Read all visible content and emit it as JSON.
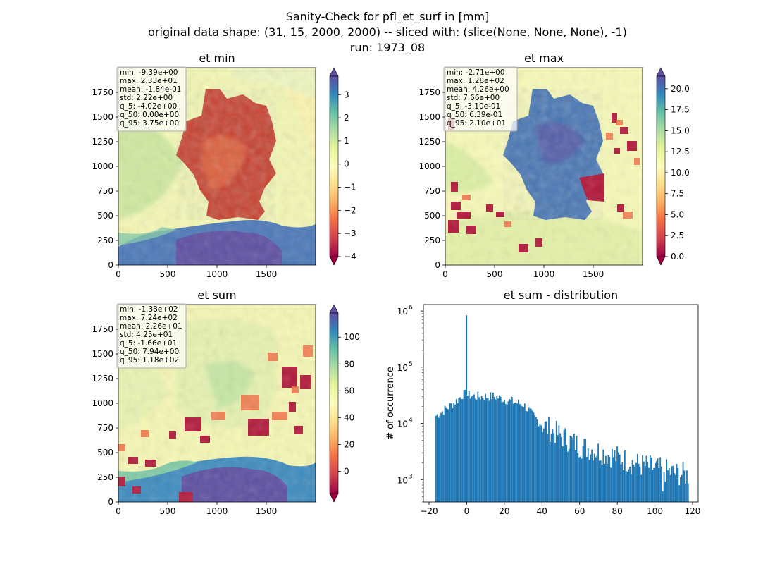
{
  "figure": {
    "title_lines": [
      "Sanity-Check for pfl_et_surf in [mm]",
      "original data shape: (31, 15, 2000, 2000) -- sliced with: (slice(None, None, None), -1)",
      "run: 1973_08"
    ]
  },
  "chart_data": [
    {
      "type": "heatmap",
      "title": "et min",
      "x_ticks": [
        0,
        500,
        1000,
        1500
      ],
      "y_ticks": [
        0,
        250,
        500,
        750,
        1000,
        1250,
        1500,
        1750
      ],
      "xlim": [
        0,
        2000
      ],
      "ylim": [
        0,
        2000
      ],
      "colormap": "Spectral",
      "colorbar": {
        "min": -4,
        "max": 3.8,
        "ticks": [
          -4,
          -3,
          -2,
          -1,
          0,
          1,
          2,
          3
        ],
        "extend": "both"
      },
      "stats": [
        "min: -9.39e+00",
        "max: 2.33e+01",
        "mean: -1.84e-01",
        "std: 2.22e+00",
        "q_5: -4.02e+00",
        "q_50: 0.00e+00",
        "q_95: 3.75e+00"
      ]
    },
    {
      "type": "heatmap",
      "title": "et max",
      "x_ticks": [
        0,
        500,
        1000,
        1500
      ],
      "y_ticks": [
        0,
        250,
        500,
        750,
        1000,
        1250,
        1500,
        1750
      ],
      "xlim": [
        0,
        2000
      ],
      "ylim": [
        0,
        2000
      ],
      "colormap": "Spectral",
      "colorbar": {
        "min": 0,
        "max": 21.5,
        "ticks": [
          0.0,
          2.5,
          5.0,
          7.5,
          10.0,
          12.5,
          15.0,
          17.5,
          20.0
        ],
        "tick_labels": [
          "0.0",
          "2.5",
          "5.0",
          "7.5",
          "10.0",
          "12.5",
          "15.0",
          "17.5",
          "20.0"
        ],
        "extend": "both"
      },
      "stats": [
        "min: -2.71e+00",
        "max: 1.28e+02",
        "mean: 4.26e+00",
        "std: 7.66e+00",
        "q_5: -3.10e-01",
        "q_50: 6.39e-01",
        "q_95: 2.10e+01"
      ]
    },
    {
      "type": "heatmap",
      "title": "et sum",
      "x_ticks": [
        0,
        500,
        1000,
        1500
      ],
      "y_ticks": [
        0,
        250,
        500,
        750,
        1000,
        1250,
        1500,
        1750
      ],
      "xlim": [
        0,
        2000
      ],
      "ylim": [
        0,
        2000
      ],
      "colormap": "Spectral",
      "colorbar": {
        "min": -16.6,
        "max": 118,
        "ticks": [
          0,
          20,
          40,
          60,
          80,
          100
        ],
        "extend": "both"
      },
      "stats": [
        "min: -1.38e+02",
        "max: 7.24e+02",
        "mean: 2.26e+01",
        "std: 4.25e+01",
        "q_5: -1.66e+01",
        "q_50: 7.94e+00",
        "q_95: 1.18e+02"
      ]
    },
    {
      "type": "bar",
      "title": "et sum - distribution",
      "ylabel": "# of occurrence",
      "xlabel": "",
      "yscale": "log",
      "xlim": [
        -23,
        123
      ],
      "ylim": [
        400,
        1300000
      ],
      "x_ticks": [
        -20,
        0,
        20,
        40,
        60,
        80,
        100,
        120
      ],
      "y_ticks": [
        {
          "value": 1000,
          "base": "10",
          "exp": "3"
        },
        {
          "value": 10000,
          "base": "10",
          "exp": "4"
        },
        {
          "value": 100000,
          "base": "10",
          "exp": "5"
        },
        {
          "value": 1000000,
          "base": "10",
          "exp": "6"
        }
      ],
      "color": "#1f77b4",
      "bin_range": [
        -16.6,
        118
      ],
      "bin_count": 200,
      "bins": {
        "anchors": [
          [
            -16.6,
            13500
          ],
          [
            -10,
            19000
          ],
          [
            -5,
            26000
          ],
          [
            -2,
            33000
          ],
          [
            5,
            30000
          ],
          [
            15,
            30000
          ],
          [
            25,
            24000
          ],
          [
            30,
            22000
          ],
          [
            35,
            14000
          ],
          [
            40,
            9500
          ],
          [
            50,
            6000
          ],
          [
            60,
            4000
          ],
          [
            70,
            3200
          ],
          [
            80,
            2500
          ],
          [
            90,
            1900
          ],
          [
            100,
            1600
          ],
          [
            110,
            1300
          ],
          [
            118,
            1200
          ]
        ],
        "spike": {
          "x": 0,
          "value": 840000
        },
        "dip": {
          "x": 104.5,
          "value": 620
        }
      }
    }
  ]
}
